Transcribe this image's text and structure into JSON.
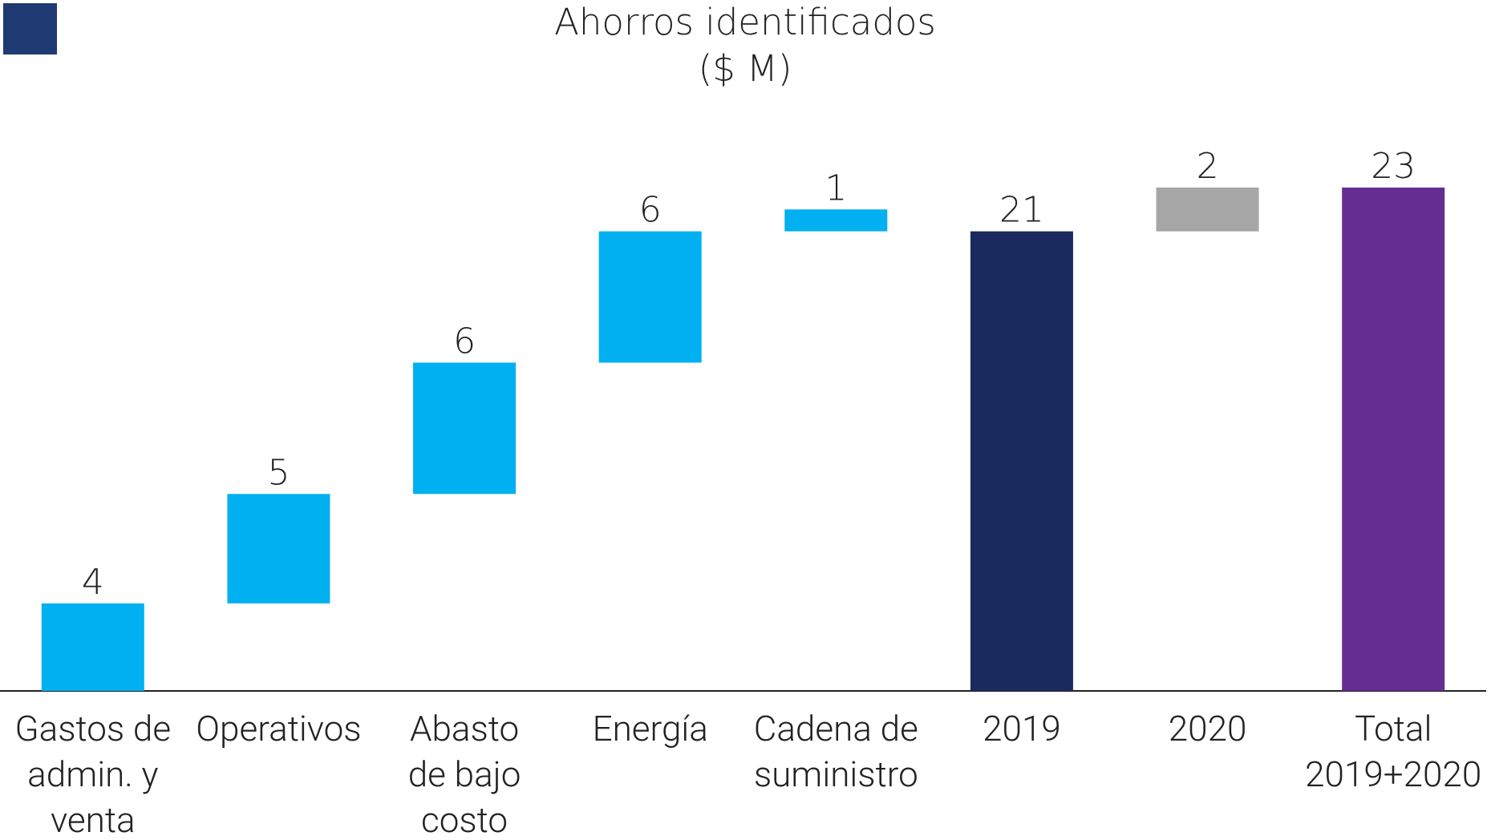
{
  "chart_data": {
    "type": "waterfall",
    "title": "Ahorros identificados",
    "subtitle": "($ M)",
    "categories": [
      "Gastos de\nadmin. y\nventa",
      "Operativos",
      "Abasto\nde bajo\ncosto",
      "Energía",
      "Cadena de\nsuministro",
      "2019",
      "2020",
      "Total\n2019+2020"
    ],
    "values": [
      4,
      5,
      6,
      6,
      1,
      21,
      2,
      23
    ],
    "measures": [
      "relative",
      "relative",
      "relative",
      "relative",
      "relative",
      "total",
      "relative",
      "total"
    ],
    "colors": [
      "#00b0f0",
      "#00b0f0",
      "#00b0f0",
      "#00b0f0",
      "#00b0f0",
      "#1b2a5e",
      "#a6a6a6",
      "#662d91"
    ],
    "ylim": [
      0,
      23
    ]
  }
}
